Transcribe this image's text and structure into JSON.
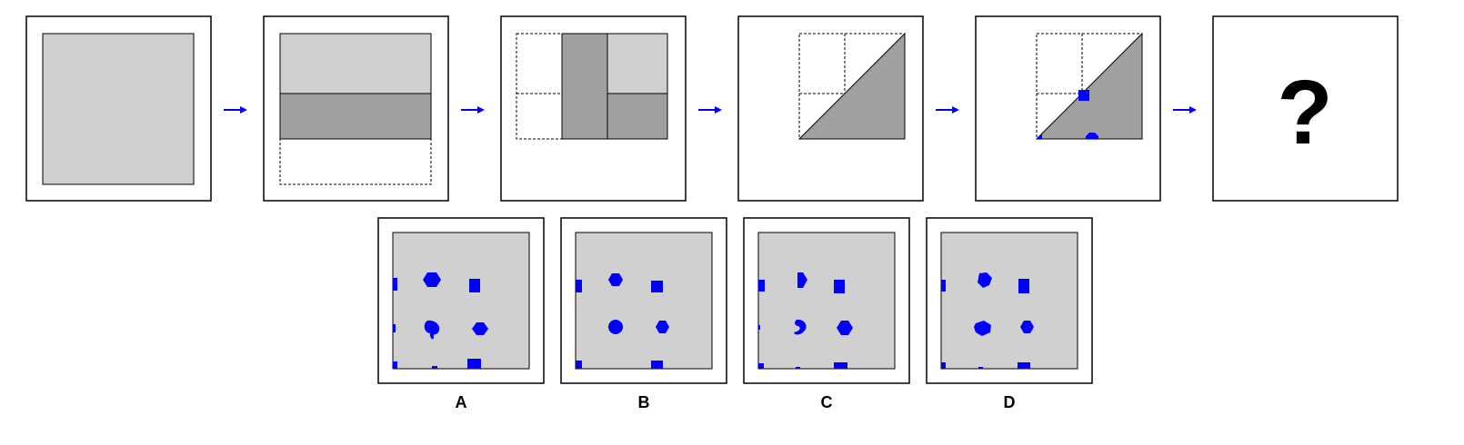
{
  "question_mark": "?",
  "options": [
    {
      "label": "A"
    },
    {
      "label": "B"
    },
    {
      "label": "C"
    },
    {
      "label": "D"
    }
  ],
  "colors": {
    "sheet": "#d0d0d0",
    "folded": "#a0a0a0",
    "hole": "#0000ff",
    "arrow": "#0000ff"
  }
}
